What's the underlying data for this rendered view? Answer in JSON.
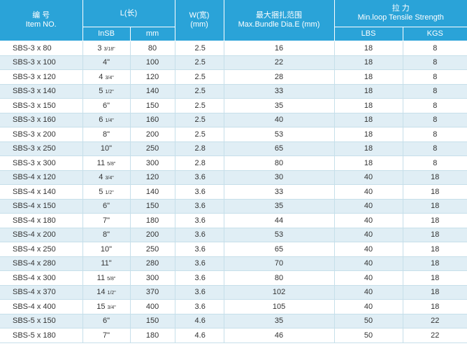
{
  "header": {
    "item_cn": "编 号",
    "item_en": "Item NO.",
    "length_label": "L(长)",
    "insb_label": "InSB",
    "mm_label": "mm",
    "width_cn": "W(宽)",
    "width_unit": "(mm)",
    "bundle_cn": "最大捆扎范围",
    "bundle_en": "Max.Bundle Dia.E (mm)",
    "tensile_cn": "拉 力",
    "tensile_en": "Min.loop Tensile Strength",
    "lbs_label": "LBS",
    "kgs_label": "KGS"
  },
  "rows": [
    {
      "item": "SBS-3 x 80",
      "insb_whole": "3",
      "insb_frac": "3/18\"",
      "mm": "80",
      "w": "2.5",
      "dia": "16",
      "lbs": "18",
      "kgs": "8"
    },
    {
      "item": "SBS-3 x 100",
      "insb_whole": "4\"",
      "insb_frac": "",
      "mm": "100",
      "w": "2.5",
      "dia": "22",
      "lbs": "18",
      "kgs": "8"
    },
    {
      "item": "SBS-3 x 120",
      "insb_whole": "4",
      "insb_frac": "3/4\"",
      "mm": "120",
      "w": "2.5",
      "dia": "28",
      "lbs": "18",
      "kgs": "8"
    },
    {
      "item": "SBS-3 x 140",
      "insb_whole": "5",
      "insb_frac": "1/2\"",
      "mm": "140",
      "w": "2.5",
      "dia": "33",
      "lbs": "18",
      "kgs": "8"
    },
    {
      "item": "SBS-3 x 150",
      "insb_whole": "6\"",
      "insb_frac": "",
      "mm": "150",
      "w": "2.5",
      "dia": "35",
      "lbs": "18",
      "kgs": "8"
    },
    {
      "item": "SBS-3 x 160",
      "insb_whole": "6",
      "insb_frac": "1/4\"",
      "mm": "160",
      "w": "2.5",
      "dia": "40",
      "lbs": "18",
      "kgs": "8"
    },
    {
      "item": "SBS-3 x 200",
      "insb_whole": "8\"",
      "insb_frac": "",
      "mm": "200",
      "w": "2.5",
      "dia": "53",
      "lbs": "18",
      "kgs": "8"
    },
    {
      "item": "SBS-3 x 250",
      "insb_whole": "10\"",
      "insb_frac": "",
      "mm": "250",
      "w": "2.8",
      "dia": "65",
      "lbs": "18",
      "kgs": "8"
    },
    {
      "item": "SBS-3 x 300",
      "insb_whole": "11",
      "insb_frac": "5/8\"",
      "mm": "300",
      "w": "2.8",
      "dia": "80",
      "lbs": "18",
      "kgs": "8"
    },
    {
      "item": "SBS-4 x 120",
      "insb_whole": "4",
      "insb_frac": "3/4\"",
      "mm": "120",
      "w": "3.6",
      "dia": "30",
      "lbs": "40",
      "kgs": "18"
    },
    {
      "item": "SBS-4 x 140",
      "insb_whole": "5",
      "insb_frac": "1/2\"",
      "mm": "140",
      "w": "3.6",
      "dia": "33",
      "lbs": "40",
      "kgs": "18"
    },
    {
      "item": "SBS-4 x 150",
      "insb_whole": "6\"",
      "insb_frac": "",
      "mm": "150",
      "w": "3.6",
      "dia": "35",
      "lbs": "40",
      "kgs": "18"
    },
    {
      "item": "SBS-4 x 180",
      "insb_whole": "7\"",
      "insb_frac": "",
      "mm": "180",
      "w": "3.6",
      "dia": "44",
      "lbs": "40",
      "kgs": "18"
    },
    {
      "item": "SBS-4 x 200",
      "insb_whole": "8\"",
      "insb_frac": "",
      "mm": "200",
      "w": "3.6",
      "dia": "53",
      "lbs": "40",
      "kgs": "18"
    },
    {
      "item": "SBS-4 x 250",
      "insb_whole": "10\"",
      "insb_frac": "",
      "mm": "250",
      "w": "3.6",
      "dia": "65",
      "lbs": "40",
      "kgs": "18"
    },
    {
      "item": "SBS-4 x 280",
      "insb_whole": "11\"",
      "insb_frac": "",
      "mm": "280",
      "w": "3.6",
      "dia": "70",
      "lbs": "40",
      "kgs": "18"
    },
    {
      "item": "SBS-4 x 300",
      "insb_whole": "11",
      "insb_frac": "5/8\"",
      "mm": "300",
      "w": "3.6",
      "dia": "80",
      "lbs": "40",
      "kgs": "18"
    },
    {
      "item": "SBS-4 x 370",
      "insb_whole": "14",
      "insb_frac": "1/2\"",
      "mm": "370",
      "w": "3.6",
      "dia": "102",
      "lbs": "40",
      "kgs": "18"
    },
    {
      "item": "SBS-4 x 400",
      "insb_whole": "15",
      "insb_frac": "3/4\"",
      "mm": "400",
      "w": "3.6",
      "dia": "105",
      "lbs": "40",
      "kgs": "18"
    },
    {
      "item": "SBS-5 x 150",
      "insb_whole": "6\"",
      "insb_frac": "",
      "mm": "150",
      "w": "4.6",
      "dia": "35",
      "lbs": "50",
      "kgs": "22"
    },
    {
      "item": "SBS-5 x 180",
      "insb_whole": "7\"",
      "insb_frac": "",
      "mm": "180",
      "w": "4.6",
      "dia": "46",
      "lbs": "50",
      "kgs": "22"
    }
  ],
  "colors": {
    "header_bg": "#2aa3d8",
    "stripe": "#e0eef5",
    "text": "#333333"
  }
}
